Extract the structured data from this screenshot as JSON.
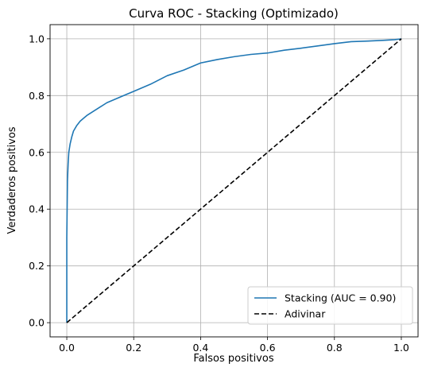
{
  "chart_data": {
    "type": "line",
    "title": "Curva ROC - Stacking (Optimizado)",
    "xlabel": "Falsos positivos",
    "ylabel": "Verdaderos positivos",
    "xlim": [
      -0.05,
      1.05
    ],
    "ylim": [
      -0.05,
      1.05
    ],
    "grid": true,
    "legend_position": "lower right",
    "x_ticks": [
      "0.0",
      "0.2",
      "0.4",
      "0.6",
      "0.8",
      "1.0"
    ],
    "y_ticks": [
      "0.0",
      "0.2",
      "0.4",
      "0.6",
      "0.8",
      "1.0"
    ],
    "series": [
      {
        "name": "Stacking (AUC = 0.90)",
        "color": "#1f77b4",
        "style": "solid",
        "x": [
          0.0,
          0.0,
          0.002,
          0.004,
          0.006,
          0.01,
          0.015,
          0.02,
          0.03,
          0.04,
          0.05,
          0.06,
          0.08,
          0.1,
          0.12,
          0.15,
          0.18,
          0.2,
          0.25,
          0.3,
          0.35,
          0.4,
          0.45,
          0.5,
          0.55,
          0.6,
          0.65,
          0.7,
          0.75,
          0.8,
          0.85,
          0.9,
          0.95,
          0.98,
          1.0
        ],
        "y": [
          0.0,
          0.3,
          0.5,
          0.56,
          0.6,
          0.63,
          0.655,
          0.675,
          0.695,
          0.71,
          0.72,
          0.73,
          0.745,
          0.76,
          0.775,
          0.79,
          0.805,
          0.815,
          0.84,
          0.87,
          0.89,
          0.915,
          0.927,
          0.937,
          0.945,
          0.95,
          0.96,
          0.967,
          0.975,
          0.983,
          0.99,
          0.992,
          0.995,
          0.997,
          1.0
        ]
      },
      {
        "name": "Adivinar",
        "color": "#000000",
        "style": "dashed",
        "x": [
          0,
          1
        ],
        "y": [
          0,
          1
        ]
      }
    ]
  }
}
